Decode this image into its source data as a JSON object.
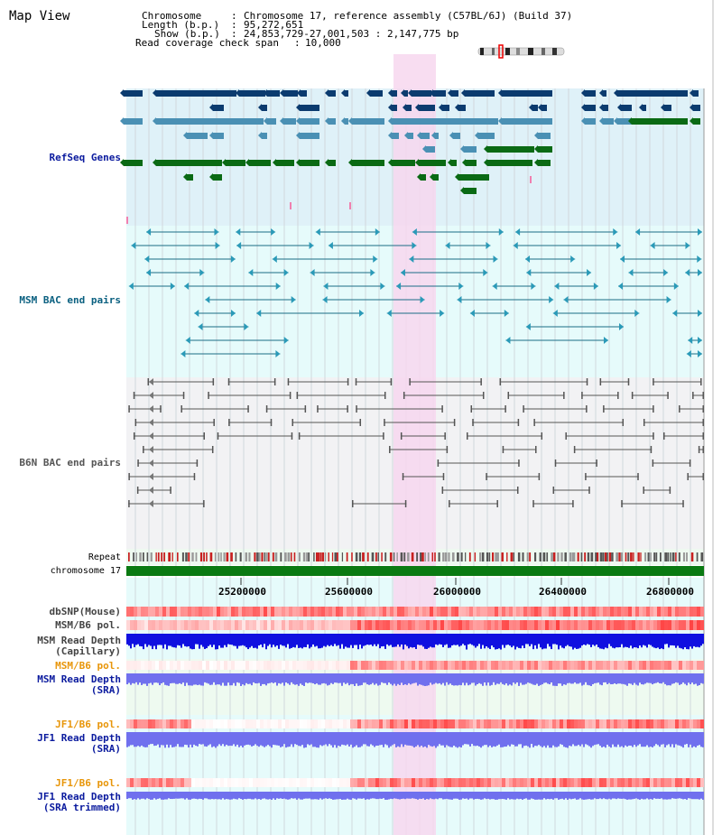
{
  "title": "Map View",
  "info": {
    "chromosome_label": "Chromosome",
    "chromosome_value": "Chromosome 17, reference assembly (C57BL/6J) (Build 37)",
    "length_label": "Length (b.p.)",
    "length_value": "95,272,651",
    "show_label": "Show (b.p.)",
    "show_value": "24,853,729-27,001,503 : 2,147,775 bp",
    "coverage_label": "Read coverage check span",
    "coverage_value": "10,000"
  },
  "tracks": {
    "refseq": "RefSeq Genes",
    "msm_bac": "MSM BAC end pairs",
    "b6n_bac": "B6N BAC end pairs",
    "repeat": "Repeat",
    "chromosome": "chromosome 17",
    "dbsnp": "dbSNP(Mouse)",
    "msm_b6_pol": "MSM/B6 pol.",
    "msm_depth_cap_1": "MSM Read Depth",
    "msm_depth_cap_2": "(Capillary)",
    "msm_b6_pol_2": "MSM/B6 pol.",
    "msm_depth_sra_1": "MSM Read Depth",
    "msm_depth_sra_2": "(SRA)",
    "jf1_b6_pol": "JF1/B6 pol.",
    "jf1_depth_sra_1": "JF1 Read Depth",
    "jf1_depth_sra_2": "(SRA)",
    "jf1_b6_pol_2": "JF1/B6 pol.",
    "jf1_depth_trim_1": "JF1 Read Depth",
    "jf1_depth_trim_2": "(SRA trimmed)"
  },
  "axis": {
    "ticks": [
      "25200000",
      "25600000",
      "26000000",
      "26400000",
      "26800000"
    ]
  },
  "colors": {
    "refseq_bg": "#dff1f8",
    "msm_bg": "#e6fbfb",
    "b6n_bg": "#f2f2f4",
    "highlight": "#f7d7ef",
    "gene_dark": "#0b3b6f",
    "gene_mid": "#4a90b4",
    "gene_green": "#0a6a14",
    "msm_line": "#1b6d86",
    "b6n_line": "#555555",
    "chrom_green": "#0a7a12",
    "depth_blue": "#1010e0",
    "depth_light": "#7070ee",
    "label_blue": "#0a1a9e",
    "label_teal": "#0a6080",
    "label_orange": "#e8960a"
  }
}
